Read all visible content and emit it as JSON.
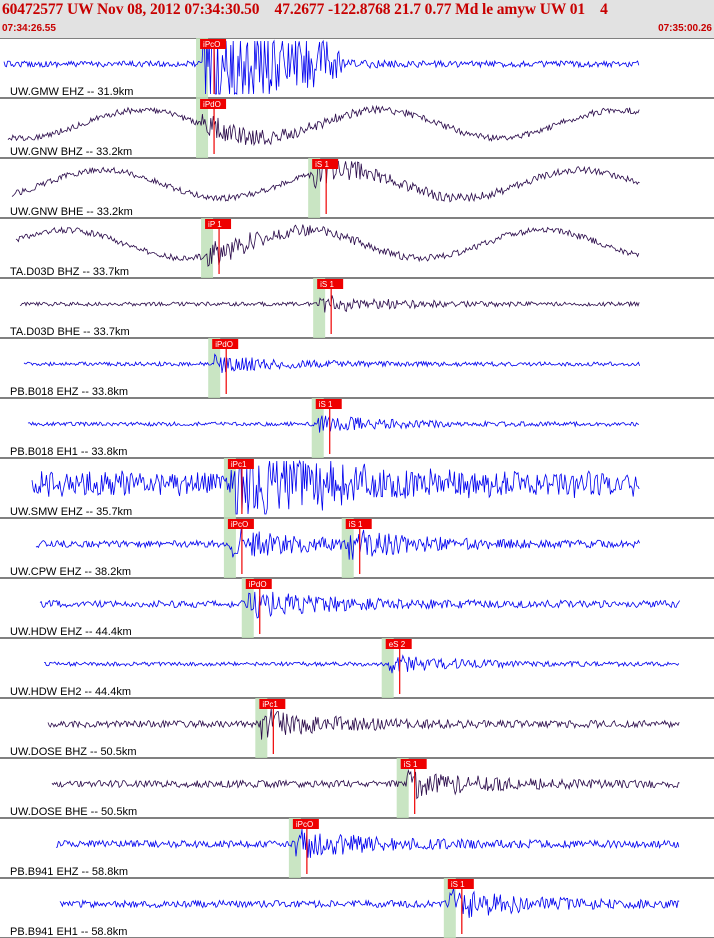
{
  "header": {
    "title": "60472577 UW Nov 08, 2012 07:34:30.50    47.2677 -122.8768 21.7 0.77 Md le amyw UW 01    4",
    "time_start": "07:34:26.55",
    "time_end": "07:35:00.26"
  },
  "colors": {
    "header_bg": "#e2e2e2",
    "header_text": "#c80000",
    "trace_blue": "#0000ee",
    "trace_purple": "#2a0a4a",
    "pick_red": "#ee0000",
    "window_green": "#bfe0b8"
  },
  "traces": [
    {
      "label": "UW.GMW EHZ -- 31.9km",
      "color": "blue",
      "type": "burst",
      "picks": [
        {
          "label": "iPcO",
          "t": 0.283
        }
      ]
    },
    {
      "label": "UW.GNW BHZ -- 33.2km",
      "color": "purple",
      "type": "wave",
      "picks": [
        {
          "label": "iPdO",
          "t": 0.283
        }
      ]
    },
    {
      "label": "UW.GNW BHE -- 33.2km",
      "color": "purple",
      "type": "wave",
      "picks": [
        {
          "label": "iS 1",
          "t": 0.44
        }
      ]
    },
    {
      "label": "TA.D03D BHZ -- 33.7km",
      "color": "purple",
      "type": "wave",
      "picks": [
        {
          "label": "iP 1",
          "t": 0.29
        }
      ]
    },
    {
      "label": "TA.D03D BHE -- 33.7km",
      "color": "purple",
      "type": "quiet",
      "picks": [
        {
          "label": "iS 1",
          "t": 0.447
        }
      ]
    },
    {
      "label": "PB.B018 EHZ -- 33.8km",
      "color": "blue",
      "type": "quiet",
      "picks": [
        {
          "label": "iPdO",
          "t": 0.3
        }
      ]
    },
    {
      "label": "PB.B018 EH1 -- 33.8km",
      "color": "blue",
      "type": "quiet",
      "picks": [
        {
          "label": "iS 1",
          "t": 0.445
        }
      ]
    },
    {
      "label": "UW.SMW EHZ -- 35.7km",
      "color": "blue",
      "type": "noisy",
      "picks": [
        {
          "label": "iPc1",
          "t": 0.322
        }
      ]
    },
    {
      "label": "UW.CPW EHZ -- 38.2km",
      "color": "blue",
      "type": "med",
      "picks": [
        {
          "label": "iPcO",
          "t": 0.322
        },
        {
          "label": "iS 1",
          "t": 0.487
        }
      ]
    },
    {
      "label": "UW.HDW EHZ -- 44.4km",
      "color": "blue",
      "type": "med",
      "picks": [
        {
          "label": "iPdO",
          "t": 0.347
        }
      ]
    },
    {
      "label": "UW.HDW EH2 -- 44.4km",
      "color": "blue",
      "type": "quiet",
      "picks": [
        {
          "label": "eS 2",
          "t": 0.543
        }
      ]
    },
    {
      "label": "UW.DOSE BHZ -- 50.5km",
      "color": "purple",
      "type": "med",
      "picks": [
        {
          "label": "iPc1",
          "t": 0.366
        }
      ]
    },
    {
      "label": "UW.DOSE BHE -- 50.5km",
      "color": "purple",
      "type": "med",
      "picks": [
        {
          "label": "iS 1",
          "t": 0.564
        }
      ]
    },
    {
      "label": "PB.B941 EHZ -- 58.8km",
      "color": "blue",
      "type": "med",
      "picks": [
        {
          "label": "iPcO",
          "t": 0.413
        }
      ]
    },
    {
      "label": "PB.B941 EH1 -- 58.8km",
      "color": "blue",
      "type": "med",
      "picks": [
        {
          "label": "iS 1",
          "t": 0.63
        }
      ]
    }
  ]
}
